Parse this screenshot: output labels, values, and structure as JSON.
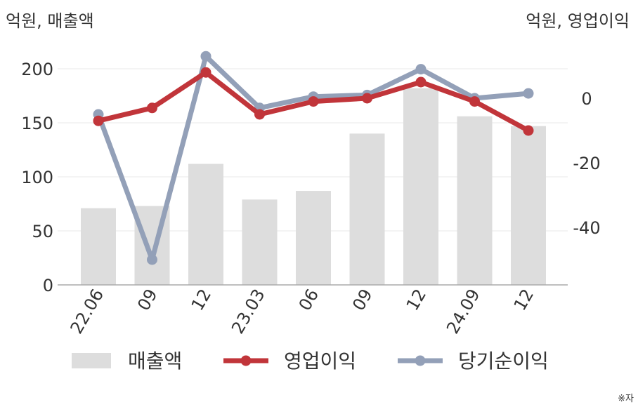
{
  "chart_data": {
    "type": "bar",
    "categories": [
      "22.06",
      "09",
      "12",
      "23.03",
      "06",
      "09",
      "12",
      "24.09",
      "12"
    ],
    "left_axis_label": "억원, 매출액",
    "right_axis_label": "억원, 영업이익",
    "left_ylim": [
      0,
      200
    ],
    "left_ticks": [
      "0",
      "50",
      "100",
      "150",
      "200"
    ],
    "right_ylim": [
      -58,
      10
    ],
    "right_ticks": [
      "0",
      "-20",
      "-40"
    ],
    "source_note": "※자",
    "series": [
      {
        "name": "매출액",
        "type": "bar",
        "axis": "left",
        "color": "#dddddd",
        "values": [
          71,
          73,
          112,
          79,
          87,
          140,
          182,
          156,
          147
        ]
      },
      {
        "name": "영업이익",
        "type": "line",
        "axis": "right",
        "color": "#c1353a",
        "values": [
          -7,
          -3,
          8,
          -5,
          -1,
          0,
          5,
          -1,
          -10
        ]
      },
      {
        "name": "당기순이익",
        "type": "line",
        "axis": "right",
        "color": "#93a0b8",
        "values": [
          -5,
          -50,
          13,
          -3,
          0.5,
          1,
          9,
          0,
          1.5
        ]
      }
    ],
    "grid": true,
    "legend_position": "bottom"
  }
}
